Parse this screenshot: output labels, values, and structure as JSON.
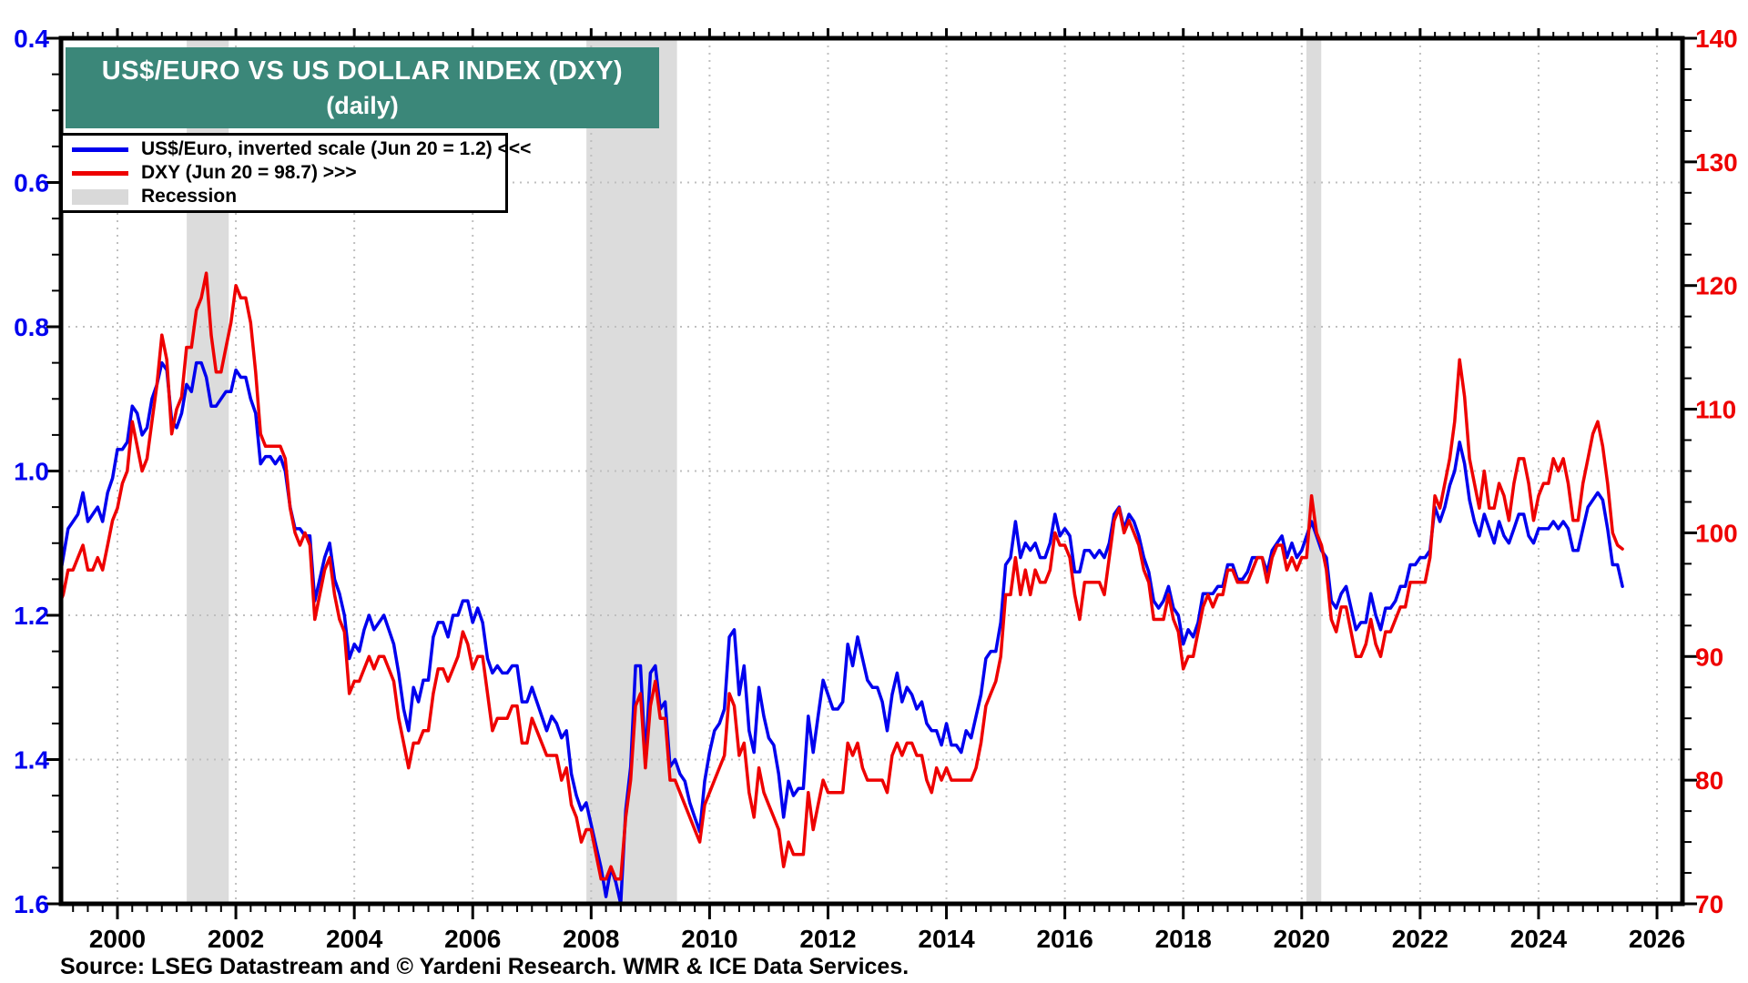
{
  "title_box": {
    "line1": "US$/EURO VS US DOLLAR INDEX (DXY)",
    "line2": "(daily)",
    "bg_color": "#3B8779",
    "text_color": "#FFFFFF"
  },
  "legend": {
    "items": [
      {
        "swatch": "line",
        "color": "#0000EE",
        "label": "US$/Euro, inverted scale (Jun 20 = 1.2) <<<"
      },
      {
        "swatch": "line",
        "color": "#EE0000",
        "label": "DXY (Jun 20 = 98.7) >>>"
      },
      {
        "swatch": "rect",
        "color": "#D9D9D9",
        "label": "Recession"
      }
    ]
  },
  "source_line": "Source: LSEG Datastream and © Yardeni Research. WMR & ICE Data Services.",
  "chart_data": {
    "type": "line",
    "title": "US$/EURO VS US DOLLAR INDEX (DXY)",
    "subtitle": "(daily)",
    "grid": "dotted horizontal at left-axis majors, dotted vertical at even years",
    "grid_color": "#BFBFBF",
    "frame_color": "#000000",
    "left_axis": {
      "label": "US$/Euro (inverted scale)",
      "color": "#0000EE",
      "inverted": true,
      "tick_labels": [
        "0.4",
        "0.6",
        "0.8",
        "1.0",
        "1.2",
        "1.4",
        "1.6"
      ],
      "tick_values": [
        0.4,
        0.6,
        0.8,
        1.0,
        1.2,
        1.4,
        1.6
      ],
      "minor_step": 0.05,
      "range": [
        0.4,
        1.6
      ]
    },
    "right_axis": {
      "label": "DXY",
      "color": "#EE0000",
      "tick_labels": [
        "140",
        "130",
        "120",
        "110",
        "100",
        "90",
        "80",
        "70"
      ],
      "tick_values": [
        140,
        130,
        120,
        110,
        100,
        90,
        80,
        70
      ],
      "minor_step": 2.5,
      "range": [
        70,
        140
      ]
    },
    "x_axis": {
      "tick_labels": [
        "2000",
        "2002",
        "2004",
        "2006",
        "2008",
        "2010",
        "2012",
        "2014",
        "2016",
        "2018",
        "2020",
        "2022",
        "2024",
        "2026"
      ],
      "tick_values": [
        2000,
        2002,
        2004,
        2006,
        2008,
        2010,
        2012,
        2014,
        2016,
        2018,
        2020,
        2022,
        2024,
        2026
      ],
      "minor_step_years": 0.25,
      "range": [
        1999.05,
        2026.43
      ]
    },
    "recession_bands": {
      "color": "#DCDCDC",
      "periods": [
        {
          "start": 2001.17,
          "end": 2001.88
        },
        {
          "start": 2007.92,
          "end": 2009.45
        },
        {
          "start": 2020.08,
          "end": 2020.33
        }
      ]
    },
    "series": [
      {
        "name": "US$/Euro, inverted scale (Jun 20 = 1.2) <<<",
        "axis": "left",
        "color": "#0000EE",
        "start_year": 1999.0,
        "points_per_year": 12,
        "values": [
          1.16,
          1.12,
          1.08,
          1.07,
          1.06,
          1.03,
          1.07,
          1.06,
          1.05,
          1.07,
          1.03,
          1.01,
          0.97,
          0.97,
          0.96,
          0.91,
          0.92,
          0.95,
          0.94,
          0.9,
          0.88,
          0.85,
          0.86,
          0.93,
          0.94,
          0.92,
          0.88,
          0.89,
          0.85,
          0.85,
          0.87,
          0.91,
          0.91,
          0.9,
          0.89,
          0.89,
          0.86,
          0.87,
          0.87,
          0.9,
          0.92,
          0.99,
          0.98,
          0.98,
          0.99,
          0.98,
          1.0,
          1.05,
          1.08,
          1.08,
          1.09,
          1.09,
          1.18,
          1.15,
          1.12,
          1.1,
          1.15,
          1.17,
          1.2,
          1.26,
          1.24,
          1.25,
          1.22,
          1.2,
          1.22,
          1.21,
          1.2,
          1.22,
          1.24,
          1.28,
          1.33,
          1.36,
          1.3,
          1.32,
          1.29,
          1.29,
          1.23,
          1.21,
          1.21,
          1.23,
          1.2,
          1.2,
          1.18,
          1.18,
          1.21,
          1.19,
          1.21,
          1.26,
          1.28,
          1.27,
          1.28,
          1.28,
          1.27,
          1.27,
          1.32,
          1.32,
          1.3,
          1.32,
          1.34,
          1.36,
          1.34,
          1.35,
          1.37,
          1.36,
          1.42,
          1.45,
          1.47,
          1.46,
          1.49,
          1.52,
          1.55,
          1.59,
          1.55,
          1.57,
          1.6,
          1.47,
          1.41,
          1.27,
          1.27,
          1.4,
          1.28,
          1.27,
          1.33,
          1.32,
          1.41,
          1.4,
          1.42,
          1.43,
          1.46,
          1.48,
          1.5,
          1.43,
          1.39,
          1.36,
          1.35,
          1.33,
          1.23,
          1.22,
          1.31,
          1.27,
          1.36,
          1.39,
          1.3,
          1.34,
          1.37,
          1.38,
          1.42,
          1.48,
          1.43,
          1.45,
          1.44,
          1.44,
          1.34,
          1.39,
          1.34,
          1.29,
          1.31,
          1.33,
          1.33,
          1.32,
          1.24,
          1.27,
          1.23,
          1.26,
          1.29,
          1.3,
          1.3,
          1.32,
          1.36,
          1.31,
          1.28,
          1.32,
          1.3,
          1.31,
          1.33,
          1.32,
          1.35,
          1.36,
          1.36,
          1.38,
          1.35,
          1.38,
          1.38,
          1.39,
          1.36,
          1.37,
          1.34,
          1.31,
          1.26,
          1.25,
          1.25,
          1.21,
          1.13,
          1.12,
          1.07,
          1.12,
          1.1,
          1.11,
          1.1,
          1.12,
          1.12,
          1.1,
          1.06,
          1.09,
          1.08,
          1.09,
          1.14,
          1.14,
          1.11,
          1.11,
          1.12,
          1.11,
          1.12,
          1.1,
          1.06,
          1.05,
          1.08,
          1.06,
          1.07,
          1.09,
          1.12,
          1.14,
          1.18,
          1.19,
          1.18,
          1.16,
          1.19,
          1.2,
          1.24,
          1.22,
          1.23,
          1.21,
          1.17,
          1.17,
          1.17,
          1.16,
          1.16,
          1.13,
          1.13,
          1.15,
          1.15,
          1.14,
          1.12,
          1.12,
          1.12,
          1.14,
          1.11,
          1.1,
          1.09,
          1.12,
          1.1,
          1.12,
          1.11,
          1.09,
          1.07,
          1.09,
          1.11,
          1.12,
          1.18,
          1.19,
          1.17,
          1.16,
          1.19,
          1.22,
          1.21,
          1.21,
          1.17,
          1.2,
          1.22,
          1.19,
          1.19,
          1.18,
          1.16,
          1.16,
          1.13,
          1.13,
          1.12,
          1.12,
          1.11,
          1.05,
          1.07,
          1.05,
          1.02,
          1.0,
          0.96,
          0.99,
          1.04,
          1.07,
          1.09,
          1.06,
          1.08,
          1.1,
          1.07,
          1.09,
          1.1,
          1.08,
          1.06,
          1.06,
          1.09,
          1.1,
          1.08,
          1.08,
          1.08,
          1.07,
          1.08,
          1.07,
          1.08,
          1.11,
          1.11,
          1.08,
          1.05,
          1.04,
          1.03,
          1.04,
          1.08,
          1.13,
          1.13,
          1.16
        ]
      },
      {
        "name": "DXY (Jun 20 = 98.7) >>>",
        "axis": "right",
        "color": "#EE0000",
        "start_year": 1999.0,
        "points_per_year": 12,
        "values": [
          94,
          95,
          97,
          97,
          98,
          99,
          97,
          97,
          98,
          97,
          99,
          101,
          102,
          104,
          105,
          109,
          107,
          105,
          106,
          109,
          112,
          116,
          114,
          108,
          110,
          111,
          115,
          115,
          118,
          119,
          121,
          116,
          113,
          113,
          115,
          117,
          120,
          119,
          119,
          117,
          113,
          108,
          107,
          107,
          107,
          107,
          106,
          102,
          100,
          99,
          100,
          99,
          93,
          95,
          97,
          98,
          95,
          93,
          92,
          87,
          88,
          88,
          89,
          90,
          89,
          90,
          90,
          89,
          88,
          85,
          83,
          81,
          83,
          83,
          84,
          84,
          87,
          89,
          89,
          88,
          89,
          90,
          92,
          91,
          89,
          90,
          90,
          87,
          84,
          85,
          85,
          85,
          86,
          86,
          83,
          83,
          85,
          84,
          83,
          82,
          82,
          82,
          80,
          81,
          78,
          77,
          75,
          76,
          76,
          74,
          72,
          72,
          73,
          72,
          72,
          77,
          80,
          86,
          87,
          81,
          86,
          88,
          85,
          85,
          80,
          80,
          79,
          78,
          77,
          76,
          75,
          78,
          79,
          80,
          81,
          82,
          87,
          86,
          82,
          83,
          79,
          77,
          81,
          79,
          78,
          77,
          76,
          73,
          75,
          74,
          74,
          74,
          79,
          76,
          78,
          80,
          79,
          79,
          79,
          79,
          83,
          82,
          83,
          81,
          80,
          80,
          80,
          80,
          79,
          82,
          83,
          82,
          83,
          83,
          82,
          82,
          80,
          79,
          81,
          80,
          81,
          80,
          80,
          80,
          80,
          80,
          81,
          83,
          86,
          87,
          88,
          90,
          95,
          95,
          98,
          95,
          97,
          95,
          97,
          96,
          96,
          97,
          100,
          99,
          99,
          98,
          95,
          93,
          96,
          96,
          96,
          96,
          95,
          98,
          101,
          102,
          100,
          101,
          100,
          99,
          97,
          96,
          93,
          93,
          93,
          95,
          93,
          92,
          89,
          90,
          90,
          92,
          94,
          95,
          94,
          95,
          95,
          97,
          97,
          96,
          96,
          96,
          97,
          98,
          98,
          96,
          98,
          99,
          99,
          97,
          98,
          97,
          98,
          98,
          103,
          100,
          99,
          97,
          93,
          92,
          94,
          94,
          92,
          90,
          90,
          91,
          93,
          91,
          90,
          92,
          92,
          93,
          94,
          94,
          96,
          96,
          96,
          96,
          98,
          103,
          102,
          104,
          106,
          109,
          114,
          111,
          106,
          104,
          102,
          105,
          102,
          102,
          104,
          103,
          101,
          104,
          106,
          106,
          104,
          101,
          103,
          104,
          104,
          106,
          105,
          106,
          104,
          101,
          101,
          104,
          106,
          108,
          109,
          107,
          104,
          100,
          99,
          98.7
        ]
      }
    ]
  }
}
